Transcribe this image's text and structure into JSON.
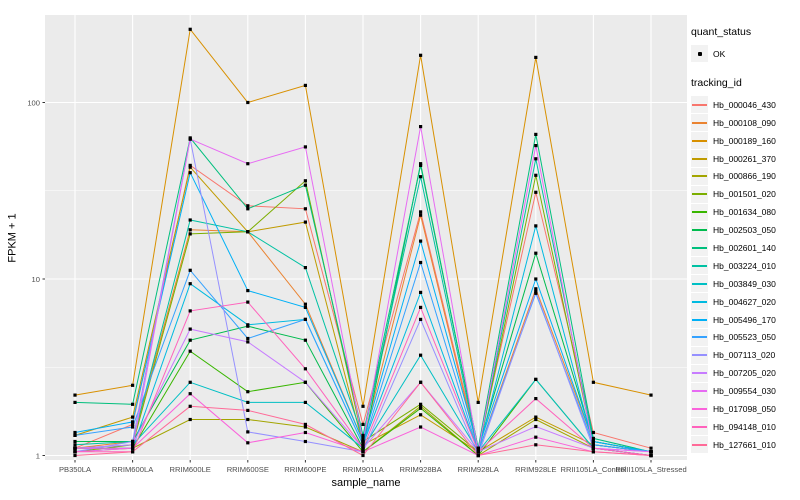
{
  "chart_data": {
    "type": "line",
    "title": "",
    "x_axis_label": "sample_name",
    "y_axis_label": "FPKM + 1",
    "y_scale": "log10",
    "y_ticks": [
      1,
      10,
      100
    ],
    "y_minor_gridlines": [
      3.162,
      31.62
    ],
    "ylim": [
      1,
      320
    ],
    "grid": "white major and minor gridlines on grey panel",
    "legend_position": "right",
    "legend_title": "tracking_id",
    "quant_status": {
      "title": "quant_status",
      "items": [
        "OK"
      ]
    },
    "panel_background": "#EBEBEB",
    "gridline_color": "#FFFFFF",
    "point_color": "#000000",
    "axis_text_color": "#4D4D4D",
    "categories": [
      "PB350LA",
      "RRIM600LA",
      "RRIM600LE",
      "RRIM600SE",
      "RRIM600PE",
      "RRIM901LA",
      "RRIM928BA",
      "RRIM928LA",
      "RRIM928LE",
      "RRII105LA_Control",
      "RRII105LA_Stressed"
    ],
    "series": [
      {
        "name": "Hb_000046_430",
        "color": "#F8766D",
        "values": [
          1.1,
          1.5,
          44,
          26,
          25,
          1.5,
          24,
          1.1,
          31,
          1.35,
          1.1
        ]
      },
      {
        "name": "Hb_000108_090",
        "color": "#EA8331",
        "values": [
          1.1,
          1.2,
          19,
          18.5,
          7.2,
          1.2,
          23,
          1.05,
          8.8,
          1.2,
          1.05
        ]
      },
      {
        "name": "Hb_000189_160",
        "color": "#D89000",
        "values": [
          2.2,
          2.5,
          260,
          100,
          125,
          1.9,
          185,
          2.0,
          180,
          2.6,
          2.2
        ]
      },
      {
        "name": "Hb_000261_370",
        "color": "#C09B00",
        "values": [
          1.3,
          1.65,
          43,
          18.5,
          21,
          1.15,
          1.7,
          1.05,
          1.65,
          1.15,
          1.05
        ]
      },
      {
        "name": "Hb_000866_190",
        "color": "#A3A500",
        "values": [
          1.05,
          1.1,
          1.6,
          1.6,
          1.45,
          1.05,
          1.9,
          1.0,
          1.6,
          1.1,
          1.0
        ]
      },
      {
        "name": "Hb_001501_020",
        "color": "#7CAE00",
        "values": [
          1.05,
          1.15,
          18,
          18.5,
          36,
          1.2,
          1.95,
          1.05,
          38.7,
          1.15,
          1.05
        ]
      },
      {
        "name": "Hb_001634_080",
        "color": "#39B600",
        "values": [
          1.1,
          1.1,
          3.9,
          2.3,
          2.6,
          1.05,
          1.85,
          1.0,
          2.7,
          1.1,
          1.0
        ]
      },
      {
        "name": "Hb_002503_050",
        "color": "#00BB4E",
        "values": [
          1.2,
          1.2,
          4.5,
          5.4,
          4.5,
          1.1,
          45,
          1.1,
          14,
          1.2,
          1.05
        ]
      },
      {
        "name": "Hb_002601_140",
        "color": "#00BF7D",
        "values": [
          2.0,
          1.95,
          63,
          25,
          34,
          1.3,
          44,
          1.1,
          66,
          1.25,
          1.05
        ]
      },
      {
        "name": "Hb_003224_010",
        "color": "#00C1A3",
        "values": [
          1.15,
          1.2,
          21.6,
          18.5,
          11.6,
          1.25,
          38,
          1.05,
          48,
          1.2,
          1.05
        ]
      },
      {
        "name": "Hb_003849_030",
        "color": "#00BFC4",
        "values": [
          1.1,
          1.15,
          2.6,
          2.0,
          2.0,
          1.1,
          3.7,
          1.05,
          2.7,
          1.1,
          1.0
        ]
      },
      {
        "name": "Hb_004627_020",
        "color": "#00BAE0",
        "values": [
          1.1,
          1.1,
          9.4,
          5.5,
          5.9,
          1.15,
          8.4,
          1.05,
          20,
          1.15,
          1.05
        ]
      },
      {
        "name": "Hb_005496_170",
        "color": "#00B0F6",
        "values": [
          1.35,
          1.55,
          40,
          8.6,
          6.9,
          1.2,
          16.4,
          1.1,
          10,
          1.2,
          1.05
        ]
      },
      {
        "name": "Hb_005523_050",
        "color": "#35A2FF",
        "values": [
          1.3,
          1.45,
          11.2,
          4.6,
          5.9,
          1.15,
          12.4,
          1.05,
          8.3,
          1.15,
          1.05
        ]
      },
      {
        "name": "Hb_007113_020",
        "color": "#9590FF",
        "values": [
          1.05,
          1.2,
          62,
          1.36,
          1.2,
          1.05,
          5.9,
          1.0,
          8.5,
          1.1,
          1.0
        ]
      },
      {
        "name": "Hb_007205_020",
        "color": "#C77CFF",
        "values": [
          1.1,
          1.15,
          5.2,
          4.4,
          2.6,
          1.1,
          2.6,
          1.05,
          1.46,
          1.1,
          1.05
        ]
      },
      {
        "name": "Hb_009554_030",
        "color": "#E76BF3",
        "values": [
          1.05,
          1.1,
          62,
          45,
          56,
          1.2,
          73,
          1.05,
          57,
          1.1,
          1.05
        ]
      },
      {
        "name": "Hb_017098_050",
        "color": "#FA62DB",
        "values": [
          1.1,
          1.1,
          2.24,
          1.18,
          1.35,
          1.05,
          1.45,
          1.0,
          1.27,
          1.05,
          1.0
        ]
      },
      {
        "name": "Hb_094148_010",
        "color": "#FF62BC",
        "values": [
          1.05,
          1.05,
          6.6,
          7.4,
          3.1,
          1.1,
          6.9,
          1.05,
          2.1,
          1.1,
          1.0
        ]
      },
      {
        "name": "Hb_127661_010",
        "color": "#FF6A98",
        "values": [
          1.0,
          1.05,
          1.9,
          1.8,
          1.5,
          1.0,
          2.6,
          1.0,
          1.15,
          1.05,
          1.0
        ]
      }
    ]
  }
}
